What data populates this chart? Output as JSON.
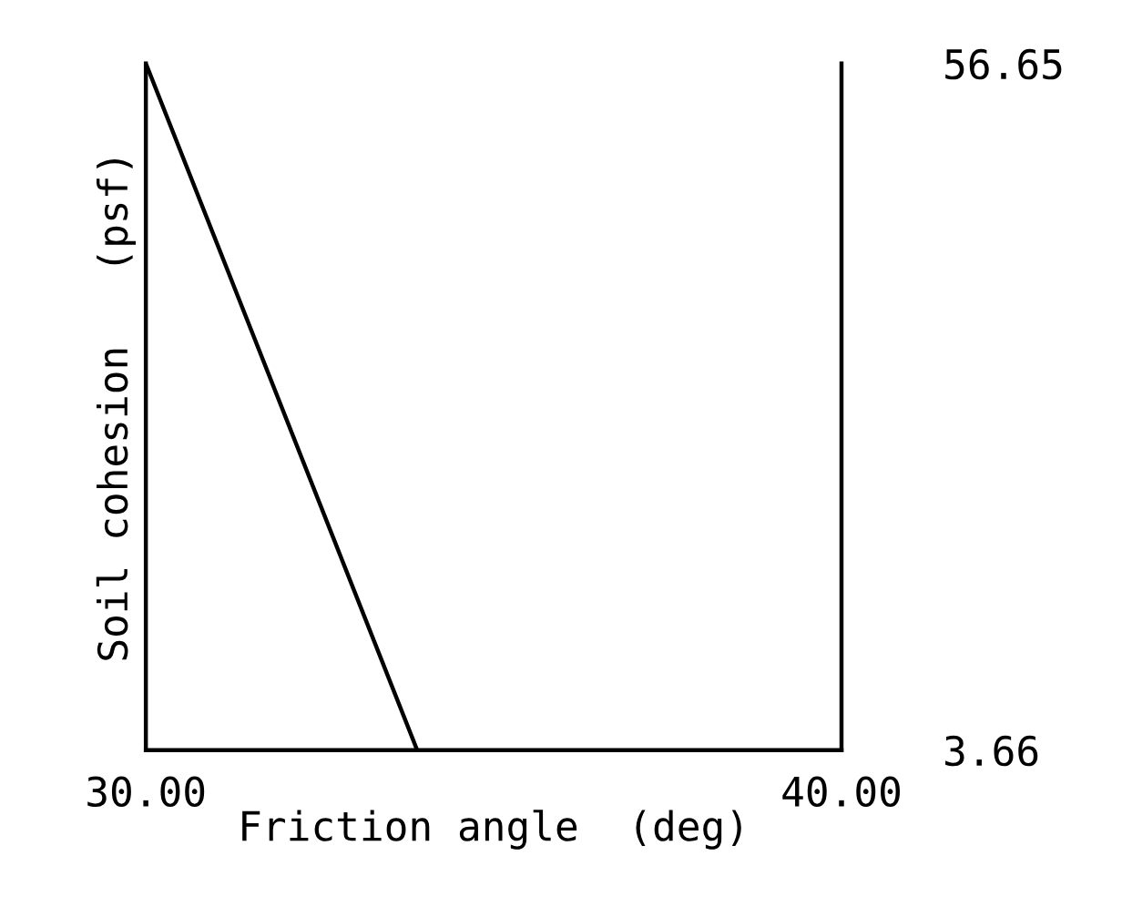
{
  "chart_data": {
    "type": "line",
    "xlabel": "Friction angle  (deg)",
    "ylabel": "Soil cohesion   (psf)",
    "x": [
      30.0,
      33.9
    ],
    "series": [
      {
        "color": "#000000",
        "values": [
          56.65,
          3.66
        ]
      }
    ],
    "xlim": [
      30.0,
      40.0
    ],
    "xticks": [
      {
        "value": 30.0,
        "label": "30.00"
      },
      {
        "value": 40.0,
        "label": "40.00"
      }
    ],
    "ylim": [
      3.66,
      56.65
    ],
    "yticks": [
      {
        "value": 3.66,
        "label": "3.66"
      },
      {
        "value": 56.65,
        "label": "56.65"
      }
    ],
    "grid": false,
    "legend": false,
    "marker": "none",
    "line_style": "solid"
  }
}
